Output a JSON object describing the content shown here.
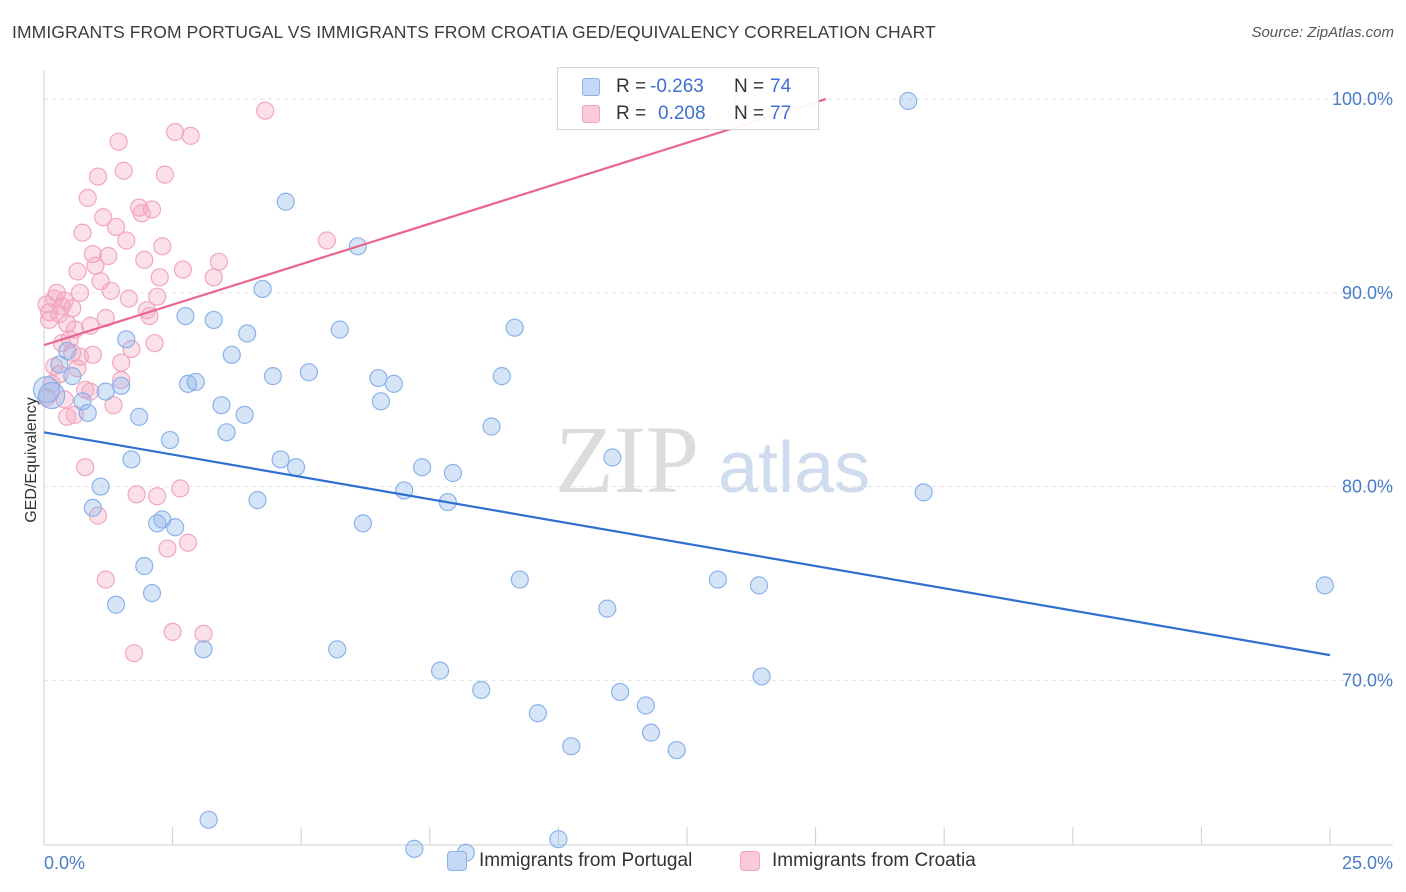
{
  "title": "IMMIGRANTS FROM PORTUGAL VS IMMIGRANTS FROM CROATIA GED/EQUIVALENCY CORRELATION CHART",
  "source": "Source: ZipAtlas.com",
  "watermark": {
    "zip": "ZIP",
    "atlas": "atlas"
  },
  "stats": [
    {
      "r_label": "R =",
      "r_value": "-0.263",
      "n_label": "N =",
      "n_value": "74",
      "color": "#8ab2ea"
    },
    {
      "r_label": "R =",
      "r_value": "0.208",
      "n_label": "N =",
      "n_value": "77",
      "color": "#f3a5bd"
    }
  ],
  "chart_data": {
    "type": "scatter",
    "title": "IMMIGRANTS FROM PORTUGAL VS IMMIGRANTS FROM CROATIA GED/EQUIVALENCY CORRELATION CHART",
    "xlabel": "",
    "ylabel": "GED/Equivalency",
    "xlim": [
      0,
      25
    ],
    "ylim": [
      61.5,
      101.5
    ],
    "x_tick_labels": [
      "0.0%",
      "25.0%"
    ],
    "y_ticks": [
      70,
      80,
      90,
      100
    ],
    "y_tick_labels": [
      "70.0%",
      "80.0%",
      "90.0%",
      "100.0%"
    ],
    "grid": "horizontal dashed",
    "legend_position": "bottom-center",
    "series": [
      {
        "name": "Immigrants from Portugal",
        "color": "#8ab2ea",
        "line_color": "#2f6fd0",
        "trend": {
          "x": [
            0,
            25
          ],
          "y": [
            82.8,
            71.3
          ]
        },
        "points": [
          [
            0.05,
            85.0
          ],
          [
            0.15,
            84.7
          ],
          [
            0.3,
            86.3
          ],
          [
            0.45,
            87.0
          ],
          [
            0.55,
            85.7
          ],
          [
            0.75,
            84.4
          ],
          [
            0.85,
            83.8
          ],
          [
            0.95,
            78.9
          ],
          [
            1.1,
            80.0
          ],
          [
            1.2,
            84.9
          ],
          [
            1.4,
            73.9
          ],
          [
            1.5,
            85.2
          ],
          [
            1.6,
            87.6
          ],
          [
            1.7,
            81.4
          ],
          [
            1.85,
            83.6
          ],
          [
            1.95,
            75.9
          ],
          [
            2.1,
            74.5
          ],
          [
            2.2,
            78.1
          ],
          [
            2.3,
            78.3
          ],
          [
            2.45,
            82.4
          ],
          [
            2.55,
            77.9
          ],
          [
            2.75,
            88.8
          ],
          [
            2.8,
            85.3
          ],
          [
            2.95,
            85.4
          ],
          [
            3.1,
            71.6
          ],
          [
            3.2,
            62.8
          ],
          [
            3.3,
            88.6
          ],
          [
            3.45,
            84.2
          ],
          [
            3.55,
            82.8
          ],
          [
            3.65,
            86.8
          ],
          [
            3.9,
            83.7
          ],
          [
            3.95,
            87.9
          ],
          [
            4.15,
            79.3
          ],
          [
            4.25,
            90.2
          ],
          [
            4.45,
            85.7
          ],
          [
            4.6,
            81.4
          ],
          [
            4.7,
            94.7
          ],
          [
            4.9,
            81.0
          ],
          [
            5.15,
            85.9
          ],
          [
            5.7,
            71.6
          ],
          [
            5.75,
            88.1
          ],
          [
            6.1,
            92.4
          ],
          [
            6.2,
            78.1
          ],
          [
            6.5,
            85.6
          ],
          [
            6.55,
            84.4
          ],
          [
            6.8,
            85.3
          ],
          [
            7.0,
            79.8
          ],
          [
            7.2,
            61.3
          ],
          [
            7.35,
            81.0
          ],
          [
            7.7,
            70.5
          ],
          [
            7.85,
            79.2
          ],
          [
            7.95,
            80.7
          ],
          [
            8.2,
            61.1
          ],
          [
            8.5,
            69.5
          ],
          [
            8.7,
            83.1
          ],
          [
            8.9,
            85.7
          ],
          [
            9.15,
            88.2
          ],
          [
            9.25,
            75.2
          ],
          [
            9.6,
            68.3
          ],
          [
            10.0,
            61.8
          ],
          [
            10.25,
            66.6
          ],
          [
            10.95,
            73.7
          ],
          [
            11.05,
            81.5
          ],
          [
            11.2,
            69.4
          ],
          [
            11.7,
            68.7
          ],
          [
            11.8,
            67.3
          ],
          [
            12.3,
            66.4
          ],
          [
            13.1,
            75.2
          ],
          [
            13.6,
            100.0
          ],
          [
            13.9,
            74.9
          ],
          [
            13.95,
            70.2
          ],
          [
            16.8,
            99.9
          ],
          [
            17.1,
            79.7
          ],
          [
            24.9,
            74.9
          ]
        ]
      },
      {
        "name": "Immigrants from Croatia",
        "color": "#f3a5bd",
        "line_color": "#e8658f",
        "trend": {
          "x": [
            0,
            15.2
          ],
          "y": [
            87.3,
            100.0
          ]
        },
        "points": [
          [
            0.05,
            89.4
          ],
          [
            0.05,
            84.6
          ],
          [
            0.1,
            89.0
          ],
          [
            0.15,
            85.3
          ],
          [
            0.2,
            89.7
          ],
          [
            0.25,
            90.0
          ],
          [
            0.3,
            88.9
          ],
          [
            0.35,
            89.3
          ],
          [
            0.35,
            87.4
          ],
          [
            0.4,
            89.6
          ],
          [
            0.45,
            88.4
          ],
          [
            0.5,
            87.6
          ],
          [
            0.55,
            86.9
          ],
          [
            0.6,
            88.1
          ],
          [
            0.6,
            83.7
          ],
          [
            0.65,
            86.1
          ],
          [
            0.7,
            90.0
          ],
          [
            0.7,
            86.7
          ],
          [
            0.75,
            93.1
          ],
          [
            0.8,
            85.0
          ],
          [
            0.8,
            81.0
          ],
          [
            0.85,
            94.9
          ],
          [
            0.9,
            88.3
          ],
          [
            0.95,
            92.0
          ],
          [
            0.95,
            86.8
          ],
          [
            1.0,
            91.4
          ],
          [
            1.05,
            96.0
          ],
          [
            1.05,
            78.5
          ],
          [
            1.1,
            90.6
          ],
          [
            1.15,
            93.9
          ],
          [
            1.2,
            75.2
          ],
          [
            1.25,
            91.9
          ],
          [
            1.3,
            90.1
          ],
          [
            1.35,
            84.2
          ],
          [
            1.4,
            93.4
          ],
          [
            1.45,
            97.8
          ],
          [
            1.5,
            86.4
          ],
          [
            1.5,
            85.5
          ],
          [
            1.55,
            96.3
          ],
          [
            1.6,
            92.7
          ],
          [
            1.65,
            89.7
          ],
          [
            1.7,
            87.1
          ],
          [
            1.75,
            71.4
          ],
          [
            1.8,
            79.6
          ],
          [
            1.85,
            94.4
          ],
          [
            1.9,
            94.1
          ],
          [
            1.95,
            91.7
          ],
          [
            2.0,
            89.1
          ],
          [
            2.05,
            88.8
          ],
          [
            2.1,
            94.3
          ],
          [
            2.15,
            87.4
          ],
          [
            2.2,
            89.8
          ],
          [
            2.2,
            79.5
          ],
          [
            2.25,
            90.8
          ],
          [
            2.3,
            92.4
          ],
          [
            2.35,
            96.1
          ],
          [
            2.4,
            76.8
          ],
          [
            2.5,
            72.5
          ],
          [
            2.55,
            98.3
          ],
          [
            2.65,
            79.9
          ],
          [
            2.7,
            91.2
          ],
          [
            2.8,
            77.1
          ],
          [
            2.85,
            98.1
          ],
          [
            3.1,
            72.4
          ],
          [
            3.3,
            90.8
          ],
          [
            3.4,
            91.6
          ],
          [
            4.3,
            99.4
          ],
          [
            5.5,
            92.7
          ],
          [
            0.1,
            88.6
          ],
          [
            0.2,
            86.2
          ],
          [
            0.4,
            84.5
          ],
          [
            0.55,
            89.2
          ],
          [
            0.9,
            84.9
          ],
          [
            1.2,
            88.7
          ],
          [
            0.3,
            85.8
          ],
          [
            0.65,
            91.1
          ],
          [
            0.45,
            83.6
          ]
        ]
      }
    ]
  }
}
